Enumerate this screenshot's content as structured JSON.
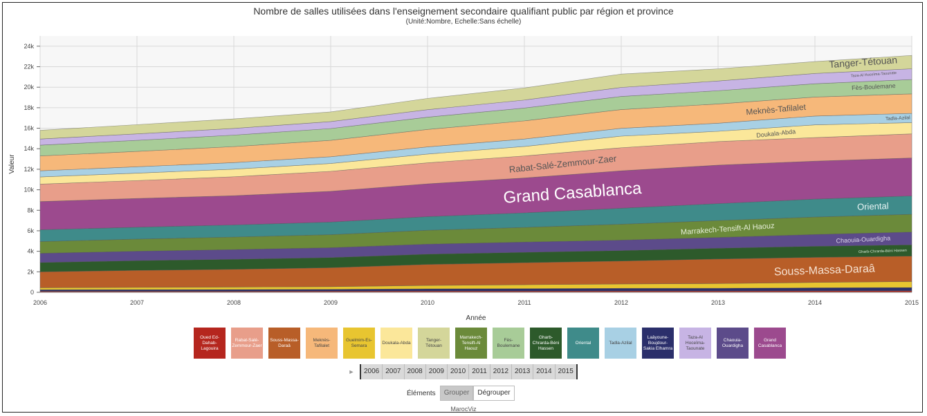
{
  "title": "Nombre de salles utilisées dans l'enseignement secondaire qualifiant public par région et province",
  "subtitle": "(Unité:Nombre, Echelle:Sans échelle)",
  "play_icon": "play-icon",
  "group_controls": {
    "label": "Éléments",
    "group": "Grouper",
    "ungroup": "Dégrouper"
  },
  "footer": "MarocViz",
  "chart_data": {
    "type": "area",
    "stacked": true,
    "xlabel": "Année",
    "ylabel": "Valeur",
    "ylim": [
      0,
      25000
    ],
    "yticks": [
      0,
      2000,
      4000,
      6000,
      8000,
      10000,
      12000,
      14000,
      16000,
      18000,
      20000,
      22000,
      24000
    ],
    "ytick_labels": [
      "0",
      "2k",
      "4k",
      "6k",
      "8k",
      "10k",
      "12k",
      "14k",
      "16k",
      "18k",
      "20k",
      "22k",
      "24k"
    ],
    "x": [
      2006,
      2007,
      2008,
      2009,
      2010,
      2011,
      2012,
      2013,
      2014,
      2015
    ],
    "grid": true,
    "series": [
      {
        "name": "Oued Ed-Dahab-Lagouira",
        "color": "#b5261e",
        "values": [
          100,
          100,
          100,
          110,
          120,
          120,
          130,
          130,
          140,
          150
        ]
      },
      {
        "name": "Laâyoune-Boujdour-Sakia Elhamra",
        "color": "#2b2f6b",
        "values": [
          150,
          160,
          170,
          180,
          220,
          240,
          260,
          270,
          300,
          320
        ]
      },
      {
        "name": "Guelmim-Es-Semara",
        "color": "#e8c530",
        "values": [
          200,
          220,
          240,
          260,
          330,
          380,
          420,
          450,
          520,
          580
        ]
      },
      {
        "name": "Souss-Massa-Daraâ",
        "color": "#b85e28",
        "values": [
          1550,
          1660,
          1730,
          1850,
          2050,
          2150,
          2240,
          2400,
          2450,
          2480
        ]
      },
      {
        "name": "Gharb-Chrarda-Béni Hassen",
        "color": "#2d5a2b",
        "values": [
          900,
          950,
          980,
          990,
          1000,
          1010,
          1020,
          1050,
          1080,
          1100
        ]
      },
      {
        "name": "Chaouia-Ouardigha",
        "color": "#5c4b8a",
        "values": [
          900,
          920,
          950,
          960,
          980,
          1000,
          1020,
          1050,
          1150,
          1250
        ]
      },
      {
        "name": "Marrakech-Tensift-Al Haouz",
        "color": "#6b8a3a",
        "values": [
          1150,
          1180,
          1220,
          1270,
          1350,
          1430,
          1550,
          1650,
          1700,
          1730
        ]
      },
      {
        "name": "Oriental",
        "color": "#3f8b8a",
        "values": [
          1150,
          1160,
          1180,
          1230,
          1330,
          1420,
          1560,
          1650,
          1750,
          1790
        ]
      },
      {
        "name": "Grand Casablanca",
        "color": "#9c4a8e",
        "values": [
          2750,
          2800,
          2850,
          3000,
          3200,
          3400,
          3650,
          3750,
          3700,
          3700
        ]
      },
      {
        "name": "Rabat-Salé-Zemmour-Zaer",
        "color": "#e89e8a",
        "values": [
          1700,
          1750,
          1850,
          1950,
          2050,
          2150,
          2250,
          2300,
          2300,
          2350
        ]
      },
      {
        "name": "Doukala-Abda",
        "color": "#fbe79a",
        "values": [
          700,
          720,
          740,
          760,
          850,
          920,
          1130,
          1000,
          1240,
          1100
        ]
      },
      {
        "name": "Tadla-Azilal",
        "color": "#a8d0e4",
        "values": [
          600,
          620,
          640,
          660,
          700,
          730,
          760,
          790,
          860,
          900
        ]
      },
      {
        "name": "Meknès-Tafilalet",
        "color": "#f6b87a",
        "values": [
          1450,
          1500,
          1560,
          1600,
          1700,
          1770,
          1830,
          1880,
          1850,
          1900
        ]
      },
      {
        "name": "Fès-Boulemane",
        "color": "#a8cc98",
        "values": [
          1050,
          1080,
          1120,
          1150,
          1200,
          1250,
          1280,
          1290,
          1300,
          1400
        ]
      },
      {
        "name": "Taza-Al Hoceïma-Taounate",
        "color": "#c7b4e4",
        "values": [
          600,
          630,
          650,
          680,
          730,
          780,
          880,
          950,
          1000,
          1050
        ]
      },
      {
        "name": "Tanger-Tétouan",
        "color": "#d4d69a",
        "values": [
          850,
          900,
          930,
          940,
          1100,
          1180,
          1300,
          1180,
          1160,
          1300
        ]
      }
    ],
    "area_labels": [
      {
        "text": "Tanger-Tétouan",
        "series": "Tanger-Tétouan"
      },
      {
        "text": "Taza-Al Hoceïma-Taounate",
        "series": "Taza-Al Hoceïma-Taounate"
      },
      {
        "text": "Fès-Boulemane",
        "series": "Fès-Boulemane"
      },
      {
        "text": "Meknès-Tafilalet",
        "series": "Meknès-Tafilalet"
      },
      {
        "text": "Tadla-Azilal",
        "series": "Tadla-Azilal"
      },
      {
        "text": "Doukala-Abda",
        "series": "Doukala-Abda"
      },
      {
        "text": "Rabat-Salé-Zemmour-Zaer",
        "series": "Rabat-Salé-Zemmour-Zaer"
      },
      {
        "text": "Grand Casablanca",
        "series": "Grand Casablanca"
      },
      {
        "text": "Oriental",
        "series": "Oriental"
      },
      {
        "text": "Marrakech-Tensift-Al Haouz",
        "series": "Marrakech-Tensift-Al Haouz"
      },
      {
        "text": "Chaouia-Ouardigha",
        "series": "Chaouia-Ouardigha"
      },
      {
        "text": "Gharb-Chrarda-Béni Hassen",
        "series": "Gharb-Chrarda-Béni Hassen"
      },
      {
        "text": "Souss-Massa-Daraâ",
        "series": "Souss-Massa-Daraâ"
      }
    ]
  },
  "legend": [
    {
      "label": "Oued Ed-Dahab-Lagouira",
      "color": "#b5261e",
      "dark": false
    },
    {
      "label": "Rabat-Salé-Zemmour-Zaer",
      "color": "#e89e8a",
      "dark": false
    },
    {
      "label": "Souss-Massa-Daraâ",
      "color": "#b85e28",
      "dark": false
    },
    {
      "label": "Meknès-Tafilalet",
      "color": "#f6b87a",
      "dark": true
    },
    {
      "label": "Guelmim-Es-Semara",
      "color": "#e8c530",
      "dark": true
    },
    {
      "label": "Doukala-Abda",
      "color": "#fbe79a",
      "dark": true
    },
    {
      "label": "Tanger-Tétouan",
      "color": "#d4d69a",
      "dark": true
    },
    {
      "label": "Marrakech-Tensift-Al Haouz",
      "color": "#6b8a3a",
      "dark": false
    },
    {
      "label": "Fès-Boulemane",
      "color": "#a8cc98",
      "dark": true
    },
    {
      "label": "Gharb-Chrarda-Béni Hassen",
      "color": "#2d5a2b",
      "dark": false
    },
    {
      "label": "Oriental",
      "color": "#3f8b8a",
      "dark": false
    },
    {
      "label": "Tadla-Azilal",
      "color": "#a8d0e4",
      "dark": true
    },
    {
      "label": "Laâyoune-Boujdour-Sakia Elhamra",
      "color": "#2b2f6b",
      "dark": false
    },
    {
      "label": "Taza-Al Hoceïma-Taounate",
      "color": "#c7b4e4",
      "dark": true
    },
    {
      "label": "Chaouia-Ouardigha",
      "color": "#5c4b8a",
      "dark": false
    },
    {
      "label": "Grand Casablanca",
      "color": "#9c4a8e",
      "dark": false
    }
  ],
  "timeline_years": [
    "2006",
    "2007",
    "2008",
    "2009",
    "2010",
    "2011",
    "2012",
    "2013",
    "2014",
    "2015"
  ]
}
